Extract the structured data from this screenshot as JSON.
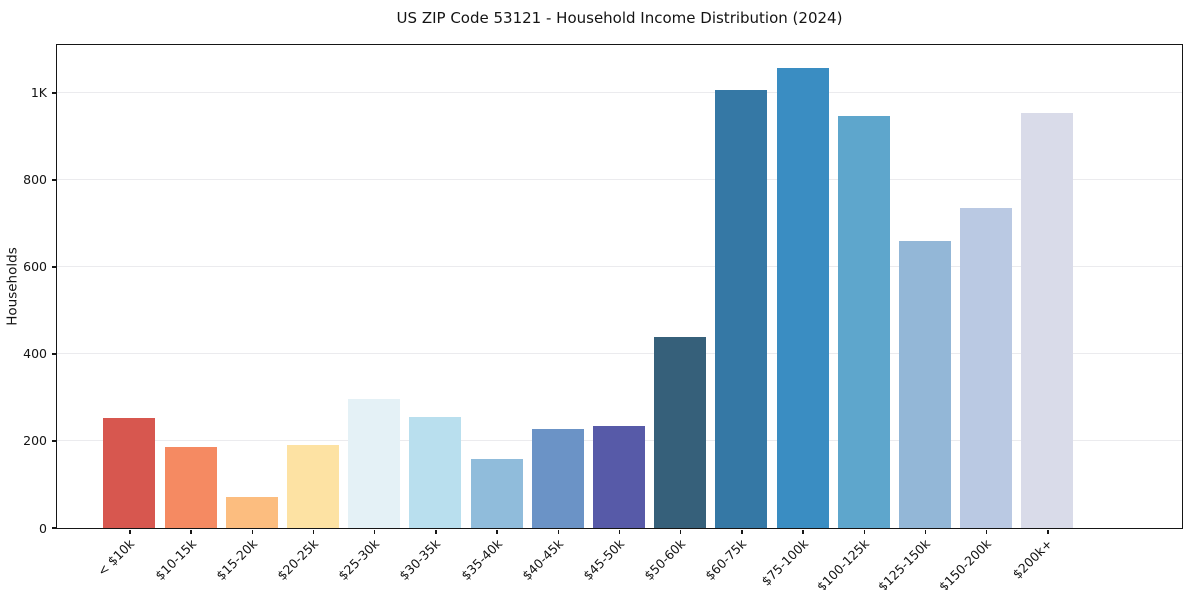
{
  "figure": {
    "title": "US ZIP Code 53121 - Household Income Distribution (2024)",
    "y_axis_label": "Households"
  },
  "chart_data": {
    "type": "bar",
    "title": "US ZIP Code 53121 - Household Income Distribution (2024)",
    "xlabel": "",
    "ylabel": "Households",
    "categories": [
      "< $10k",
      "$10-15k",
      "$15-20k",
      "$20-25k",
      "$25-30k",
      "$30-35k",
      "$35-40k",
      "$40-45k",
      "$45-50k",
      "$50-60k",
      "$60-75k",
      "$75-100k",
      "$100-125k",
      "$125-150k",
      "$150-200k",
      "$200k+"
    ],
    "values": [
      252,
      186,
      71,
      190,
      296,
      255,
      157,
      227,
      233,
      438,
      1005,
      1057,
      946,
      659,
      735,
      953
    ],
    "bar_colors": [
      "#d7574f",
      "#f58a62",
      "#fcbd7f",
      "#fde2a3",
      "#e4f1f6",
      "#b9dfee",
      "#90bcdb",
      "#6b93c6",
      "#575aa8",
      "#36607a",
      "#3578a5",
      "#3a8dc2",
      "#5ea6cc",
      "#93b7d7",
      "#bac9e3",
      "#d9dbe9"
    ],
    "ylim": [
      0,
      1110
    ],
    "yticks": [
      {
        "value": 0,
        "label": "0"
      },
      {
        "value": 200,
        "label": "200"
      },
      {
        "value": 400,
        "label": "400"
      },
      {
        "value": 600,
        "label": "600"
      },
      {
        "value": 800,
        "label": "800"
      },
      {
        "value": 1000,
        "label": "1K"
      }
    ],
    "grid": true,
    "legend": false,
    "gridline_color": "#ebebee",
    "text_color": "#141414",
    "background_color": "#ffffff"
  }
}
